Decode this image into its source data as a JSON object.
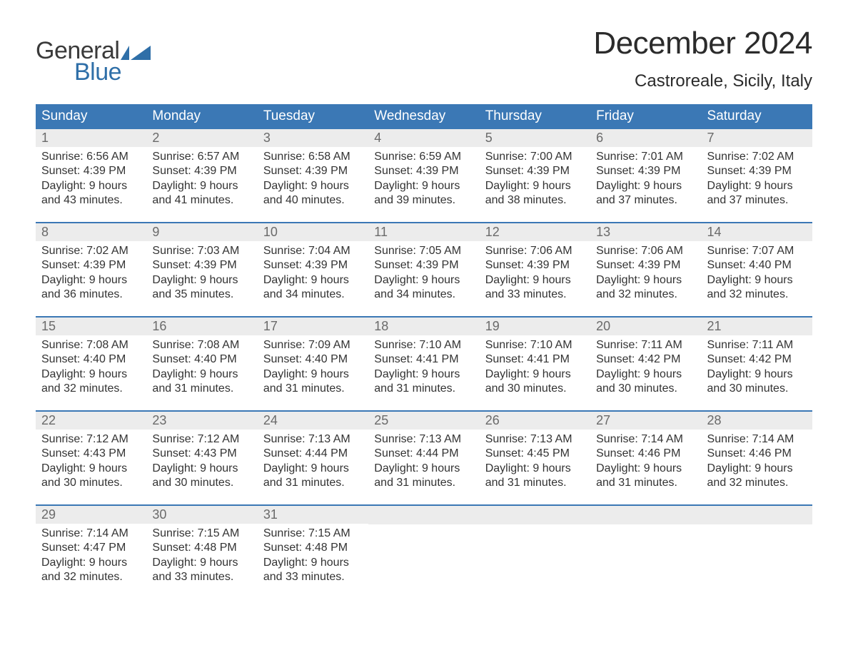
{
  "logo": {
    "text_top": "General",
    "text_bottom": "Blue",
    "flag_color": "#2f6fa8",
    "top_color": "#3a3a3a",
    "bottom_color": "#2f6fa8"
  },
  "title": "December 2024",
  "location": "Castroreale, Sicily, Italy",
  "colors": {
    "header_bg": "#3b78b5",
    "header_text": "#ffffff",
    "daynum_bg": "#ececec",
    "daynum_text": "#6a6a6a",
    "body_text": "#333333",
    "week_border": "#3b78b5",
    "page_bg": "#ffffff"
  },
  "weekdays": [
    "Sunday",
    "Monday",
    "Tuesday",
    "Wednesday",
    "Thursday",
    "Friday",
    "Saturday"
  ],
  "weeks": [
    [
      {
        "day": "1",
        "sunrise": "Sunrise: 6:56 AM",
        "sunset": "Sunset: 4:39 PM",
        "daylight": "Daylight: 9 hours and 43 minutes."
      },
      {
        "day": "2",
        "sunrise": "Sunrise: 6:57 AM",
        "sunset": "Sunset: 4:39 PM",
        "daylight": "Daylight: 9 hours and 41 minutes."
      },
      {
        "day": "3",
        "sunrise": "Sunrise: 6:58 AM",
        "sunset": "Sunset: 4:39 PM",
        "daylight": "Daylight: 9 hours and 40 minutes."
      },
      {
        "day": "4",
        "sunrise": "Sunrise: 6:59 AM",
        "sunset": "Sunset: 4:39 PM",
        "daylight": "Daylight: 9 hours and 39 minutes."
      },
      {
        "day": "5",
        "sunrise": "Sunrise: 7:00 AM",
        "sunset": "Sunset: 4:39 PM",
        "daylight": "Daylight: 9 hours and 38 minutes."
      },
      {
        "day": "6",
        "sunrise": "Sunrise: 7:01 AM",
        "sunset": "Sunset: 4:39 PM",
        "daylight": "Daylight: 9 hours and 37 minutes."
      },
      {
        "day": "7",
        "sunrise": "Sunrise: 7:02 AM",
        "sunset": "Sunset: 4:39 PM",
        "daylight": "Daylight: 9 hours and 37 minutes."
      }
    ],
    [
      {
        "day": "8",
        "sunrise": "Sunrise: 7:02 AM",
        "sunset": "Sunset: 4:39 PM",
        "daylight": "Daylight: 9 hours and 36 minutes."
      },
      {
        "day": "9",
        "sunrise": "Sunrise: 7:03 AM",
        "sunset": "Sunset: 4:39 PM",
        "daylight": "Daylight: 9 hours and 35 minutes."
      },
      {
        "day": "10",
        "sunrise": "Sunrise: 7:04 AM",
        "sunset": "Sunset: 4:39 PM",
        "daylight": "Daylight: 9 hours and 34 minutes."
      },
      {
        "day": "11",
        "sunrise": "Sunrise: 7:05 AM",
        "sunset": "Sunset: 4:39 PM",
        "daylight": "Daylight: 9 hours and 34 minutes."
      },
      {
        "day": "12",
        "sunrise": "Sunrise: 7:06 AM",
        "sunset": "Sunset: 4:39 PM",
        "daylight": "Daylight: 9 hours and 33 minutes."
      },
      {
        "day": "13",
        "sunrise": "Sunrise: 7:06 AM",
        "sunset": "Sunset: 4:39 PM",
        "daylight": "Daylight: 9 hours and 32 minutes."
      },
      {
        "day": "14",
        "sunrise": "Sunrise: 7:07 AM",
        "sunset": "Sunset: 4:40 PM",
        "daylight": "Daylight: 9 hours and 32 minutes."
      }
    ],
    [
      {
        "day": "15",
        "sunrise": "Sunrise: 7:08 AM",
        "sunset": "Sunset: 4:40 PM",
        "daylight": "Daylight: 9 hours and 32 minutes."
      },
      {
        "day": "16",
        "sunrise": "Sunrise: 7:08 AM",
        "sunset": "Sunset: 4:40 PM",
        "daylight": "Daylight: 9 hours and 31 minutes."
      },
      {
        "day": "17",
        "sunrise": "Sunrise: 7:09 AM",
        "sunset": "Sunset: 4:40 PM",
        "daylight": "Daylight: 9 hours and 31 minutes."
      },
      {
        "day": "18",
        "sunrise": "Sunrise: 7:10 AM",
        "sunset": "Sunset: 4:41 PM",
        "daylight": "Daylight: 9 hours and 31 minutes."
      },
      {
        "day": "19",
        "sunrise": "Sunrise: 7:10 AM",
        "sunset": "Sunset: 4:41 PM",
        "daylight": "Daylight: 9 hours and 30 minutes."
      },
      {
        "day": "20",
        "sunrise": "Sunrise: 7:11 AM",
        "sunset": "Sunset: 4:42 PM",
        "daylight": "Daylight: 9 hours and 30 minutes."
      },
      {
        "day": "21",
        "sunrise": "Sunrise: 7:11 AM",
        "sunset": "Sunset: 4:42 PM",
        "daylight": "Daylight: 9 hours and 30 minutes."
      }
    ],
    [
      {
        "day": "22",
        "sunrise": "Sunrise: 7:12 AM",
        "sunset": "Sunset: 4:43 PM",
        "daylight": "Daylight: 9 hours and 30 minutes."
      },
      {
        "day": "23",
        "sunrise": "Sunrise: 7:12 AM",
        "sunset": "Sunset: 4:43 PM",
        "daylight": "Daylight: 9 hours and 30 minutes."
      },
      {
        "day": "24",
        "sunrise": "Sunrise: 7:13 AM",
        "sunset": "Sunset: 4:44 PM",
        "daylight": "Daylight: 9 hours and 31 minutes."
      },
      {
        "day": "25",
        "sunrise": "Sunrise: 7:13 AM",
        "sunset": "Sunset: 4:44 PM",
        "daylight": "Daylight: 9 hours and 31 minutes."
      },
      {
        "day": "26",
        "sunrise": "Sunrise: 7:13 AM",
        "sunset": "Sunset: 4:45 PM",
        "daylight": "Daylight: 9 hours and 31 minutes."
      },
      {
        "day": "27",
        "sunrise": "Sunrise: 7:14 AM",
        "sunset": "Sunset: 4:46 PM",
        "daylight": "Daylight: 9 hours and 31 minutes."
      },
      {
        "day": "28",
        "sunrise": "Sunrise: 7:14 AM",
        "sunset": "Sunset: 4:46 PM",
        "daylight": "Daylight: 9 hours and 32 minutes."
      }
    ],
    [
      {
        "day": "29",
        "sunrise": "Sunrise: 7:14 AM",
        "sunset": "Sunset: 4:47 PM",
        "daylight": "Daylight: 9 hours and 32 minutes."
      },
      {
        "day": "30",
        "sunrise": "Sunrise: 7:15 AM",
        "sunset": "Sunset: 4:48 PM",
        "daylight": "Daylight: 9 hours and 33 minutes."
      },
      {
        "day": "31",
        "sunrise": "Sunrise: 7:15 AM",
        "sunset": "Sunset: 4:48 PM",
        "daylight": "Daylight: 9 hours and 33 minutes."
      },
      null,
      null,
      null,
      null
    ]
  ]
}
